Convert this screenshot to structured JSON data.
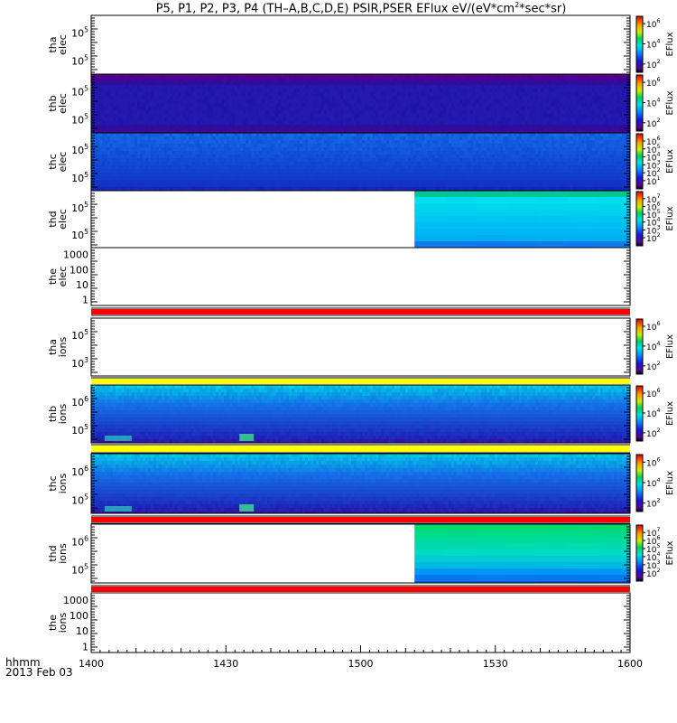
{
  "title": {
    "main": "P5, P1, P2, P3, P4 (TH–A,B,C,D,E) PSIR,PSER EFlux eV/(eV*cm",
    "sup": "2",
    "tail": "*sec*sr)"
  },
  "footer": {
    "time_label": "hhmm",
    "date_label": "2013 Feb 03"
  },
  "colorbar_label": "EFlux",
  "x_ticks": [
    "1400",
    "1430",
    "1500",
    "1530",
    "1600"
  ],
  "chart_data": [
    {
      "type": "heatmap",
      "name": "tha elec",
      "ylabel": [
        "tha",
        "elec"
      ],
      "y_ticks": [
        "10^5",
        "10^5"
      ],
      "coverage": "none",
      "status_bar": null,
      "cbar_ticks": [
        "10^6",
        "10^4",
        "10^2"
      ]
    },
    {
      "type": "heatmap",
      "name": "thb elec",
      "ylabel": [
        "thb",
        "elec"
      ],
      "y_ticks": [
        "10^5",
        "10^5"
      ],
      "coverage": "full",
      "palette": "purple-blue",
      "status_bar": null,
      "cbar_ticks": [
        "10^6",
        "10^4",
        "10^2"
      ]
    },
    {
      "type": "heatmap",
      "name": "thc elec",
      "ylabel": [
        "thc",
        "elec"
      ],
      "y_ticks": [
        "10^5",
        "10^5"
      ],
      "coverage": "full",
      "palette": "blue",
      "status_bar": null,
      "cbar_ticks": [
        "10^6",
        "10^5",
        "10^4",
        "10^3",
        "10^2",
        "10^1"
      ]
    },
    {
      "type": "heatmap",
      "name": "thd elec",
      "ylabel": [
        "thd",
        "elec"
      ],
      "y_ticks": [
        "10^5",
        "10^5"
      ],
      "coverage": "from 1512",
      "palette": "cyan",
      "status_bar": null,
      "cbar_ticks": [
        "10^7",
        "10^6",
        "10^5",
        "10^4",
        "10^3",
        "10^2"
      ]
    },
    {
      "type": "heatmap",
      "name": "the elec",
      "ylabel": [
        "the",
        "elec"
      ],
      "y_ticks": [
        "1000",
        "100",
        "10",
        "1"
      ],
      "coverage": "none",
      "status_bar": "red",
      "cbar_ticks": []
    },
    {
      "type": "heatmap",
      "name": "tha ions",
      "ylabel": [
        "tha",
        "ions"
      ],
      "y_ticks": [
        "10^5",
        "10^3"
      ],
      "coverage": "none",
      "status_bar": "yellow",
      "cbar_ticks": [
        "10^6",
        "10^4",
        "10^2"
      ]
    },
    {
      "type": "heatmap",
      "name": "thb ions",
      "ylabel": [
        "thb",
        "ions"
      ],
      "y_ticks": [
        "10^6",
        "10^5"
      ],
      "coverage": "full",
      "palette": "ion",
      "status_bar": "yellow",
      "cbar_ticks": [
        "10^6",
        "10^4",
        "10^2"
      ]
    },
    {
      "type": "heatmap",
      "name": "thc ions",
      "ylabel": [
        "thc",
        "ions"
      ],
      "y_ticks": [
        "10^6",
        "10^5"
      ],
      "coverage": "full",
      "palette": "ion",
      "status_bar": "red",
      "cbar_ticks": [
        "10^6",
        "10^4",
        "10^2"
      ]
    },
    {
      "type": "heatmap",
      "name": "thd ions",
      "ylabel": [
        "thd",
        "ions"
      ],
      "y_ticks": [
        "10^6",
        "10^5"
      ],
      "coverage": "from 1512",
      "palette": "ion-green",
      "status_bar": "red",
      "cbar_ticks": [
        "10^7",
        "10^6",
        "10^5",
        "10^4",
        "10^3",
        "10^2"
      ]
    },
    {
      "type": "heatmap",
      "name": "the ions",
      "ylabel": [
        "the",
        "ions"
      ],
      "y_ticks": [
        "1000",
        "100",
        "10",
        "1"
      ],
      "coverage": "none",
      "status_bar": null,
      "cbar_ticks": []
    }
  ]
}
